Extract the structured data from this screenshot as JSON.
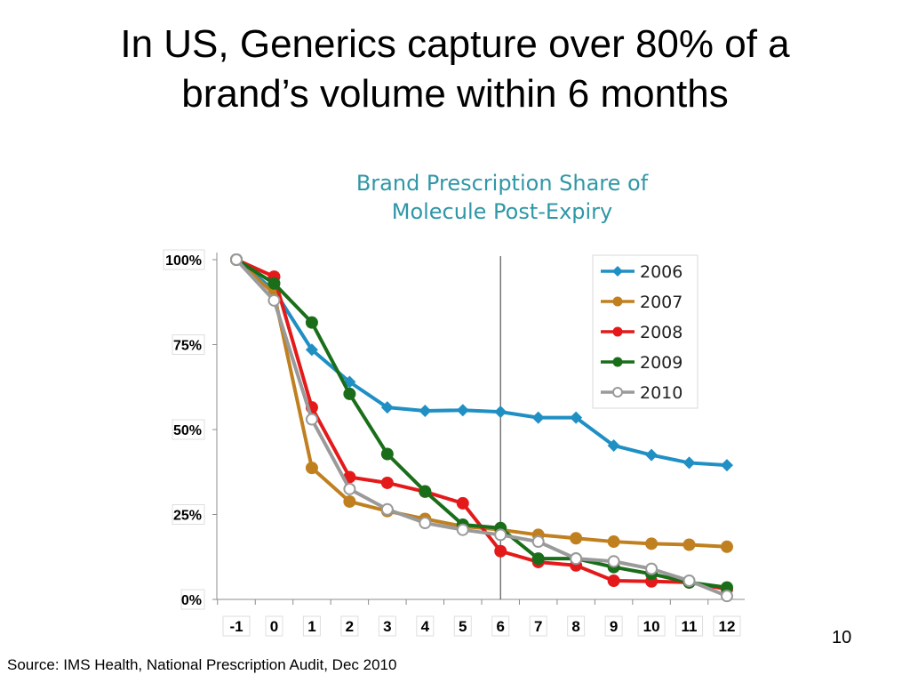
{
  "slide": {
    "title_line1": "In US, Generics capture over 80% of a",
    "title_line2": "brand’s volume within 6 months",
    "page_number": "10",
    "source": "Source: IMS Health, National Prescription Audit, Dec  2010"
  },
  "chart_data": {
    "type": "line",
    "title_line1": "Brand Prescription Share of",
    "title_line2": "Molecule Post-Expiry",
    "xlabel": "",
    "ylabel": "",
    "x": [
      -1,
      0,
      1,
      2,
      3,
      4,
      5,
      6,
      7,
      8,
      9,
      10,
      11,
      12
    ],
    "x_tick_labels": [
      "-1",
      "0",
      "1",
      "2",
      "3",
      "4",
      "5",
      "6",
      "7",
      "8",
      "9",
      "10",
      "11",
      "12"
    ],
    "ylim": [
      0,
      100
    ],
    "y_ticks": [
      0,
      25,
      50,
      75,
      100
    ],
    "y_tick_labels": [
      "0%",
      "25%",
      "50%",
      "75%",
      "100%"
    ],
    "reference_line_x": 6,
    "legend_position": "top-right",
    "grid": false,
    "series": [
      {
        "name": "2006",
        "color": "#1f8fc4",
        "marker": "diamond",
        "values": [
          100,
          91,
          73.5,
          64,
          56.5,
          55.5,
          55.7,
          55.2,
          53.5,
          53.5,
          45.3,
          42.5,
          40.2,
          39.5
        ]
      },
      {
        "name": "2007",
        "color": "#c08020",
        "marker": "circle",
        "values": [
          100,
          90,
          38.7,
          28.8,
          26,
          23.7,
          21.5,
          20.5,
          19,
          18,
          17,
          16.4,
          16.1,
          15.5
        ]
      },
      {
        "name": "2008",
        "color": "#e41a1a",
        "marker": "circle",
        "values": [
          100,
          95,
          56.5,
          36,
          34.3,
          31.7,
          28.3,
          14.2,
          11,
          10,
          5.5,
          5.3,
          5,
          3
        ]
      },
      {
        "name": "2009",
        "color": "#1a6e1a",
        "marker": "circle",
        "values": [
          100,
          93,
          81.5,
          60.5,
          42.8,
          31.8,
          22,
          21,
          12,
          12,
          9.5,
          7.5,
          5,
          3.5
        ]
      },
      {
        "name": "2010",
        "color": "#9a9a9a",
        "marker": "open-circle",
        "values": [
          100,
          88,
          53,
          32.5,
          26.5,
          22.5,
          20.5,
          19,
          17,
          12,
          11.2,
          9,
          5.5,
          1
        ]
      }
    ]
  }
}
